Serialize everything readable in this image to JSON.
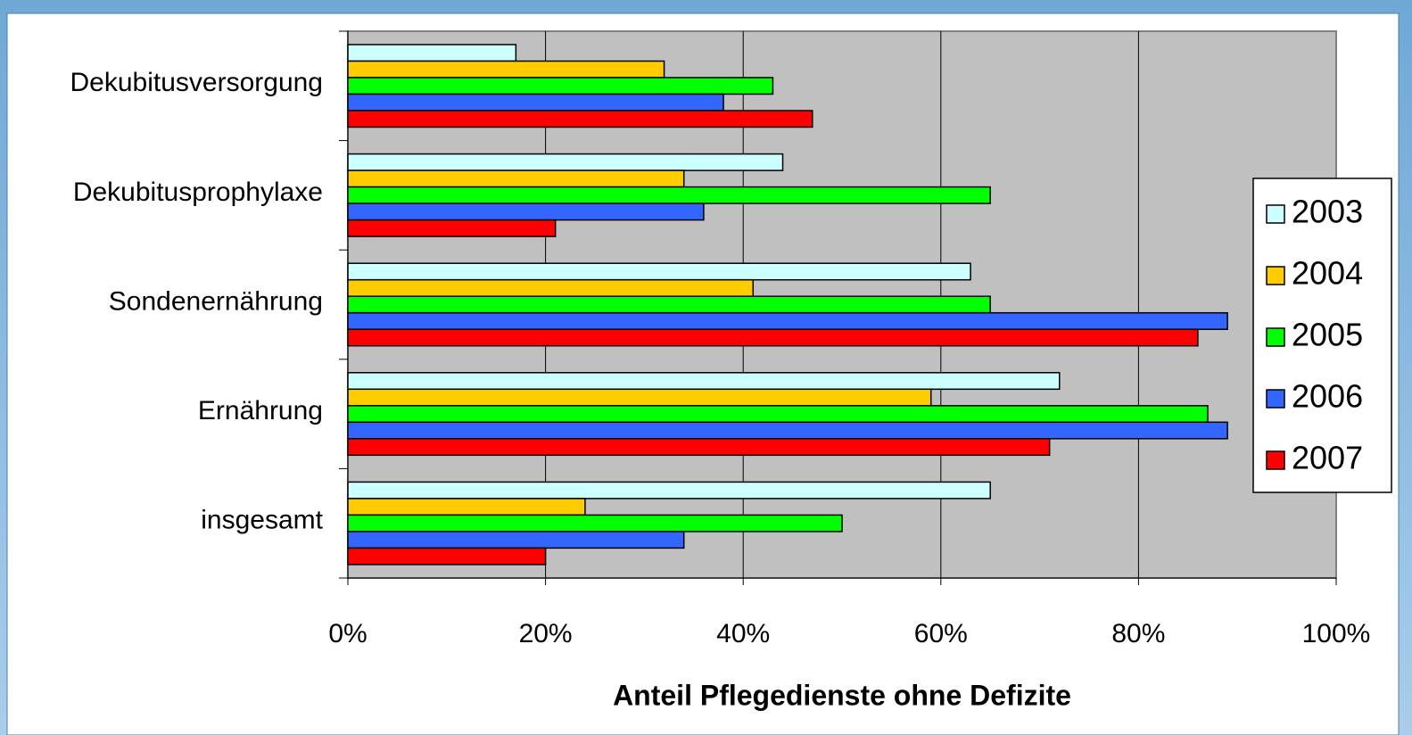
{
  "chart_data": {
    "type": "barh",
    "x_label": "Anteil Pflegedienste ohne Defizite",
    "categories": [
      "Dekubitusversorgung",
      "Dekubitusprophylaxe",
      "Sondenernährung",
      "Ernährung",
      "insgesamt"
    ],
    "series": [
      {
        "name": "2003",
        "color": "#ccffff",
        "values": [
          17,
          44,
          63,
          72,
          65
        ]
      },
      {
        "name": "2004",
        "color": "#ffcc00",
        "values": [
          32,
          34,
          41,
          59,
          24
        ]
      },
      {
        "name": "2005",
        "color": "#00ff00",
        "values": [
          43,
          65,
          65,
          87,
          50
        ]
      },
      {
        "name": "2006",
        "color": "#3366ff",
        "values": [
          38,
          36,
          89,
          89,
          34
        ]
      },
      {
        "name": "2007",
        "color": "#ff0000",
        "values": [
          47,
          21,
          86,
          71,
          20
        ]
      }
    ],
    "xlim": [
      0,
      100
    ],
    "xticks": [
      {
        "value": 0,
        "label": "0%"
      },
      {
        "value": 20,
        "label": "20%"
      },
      {
        "value": 40,
        "label": "40%"
      },
      {
        "value": 60,
        "label": "60%"
      },
      {
        "value": 80,
        "label": "80%"
      },
      {
        "value": 100,
        "label": "100%"
      }
    ],
    "grid": true,
    "plot_background": "#c0c0c0",
    "legend": "right"
  }
}
